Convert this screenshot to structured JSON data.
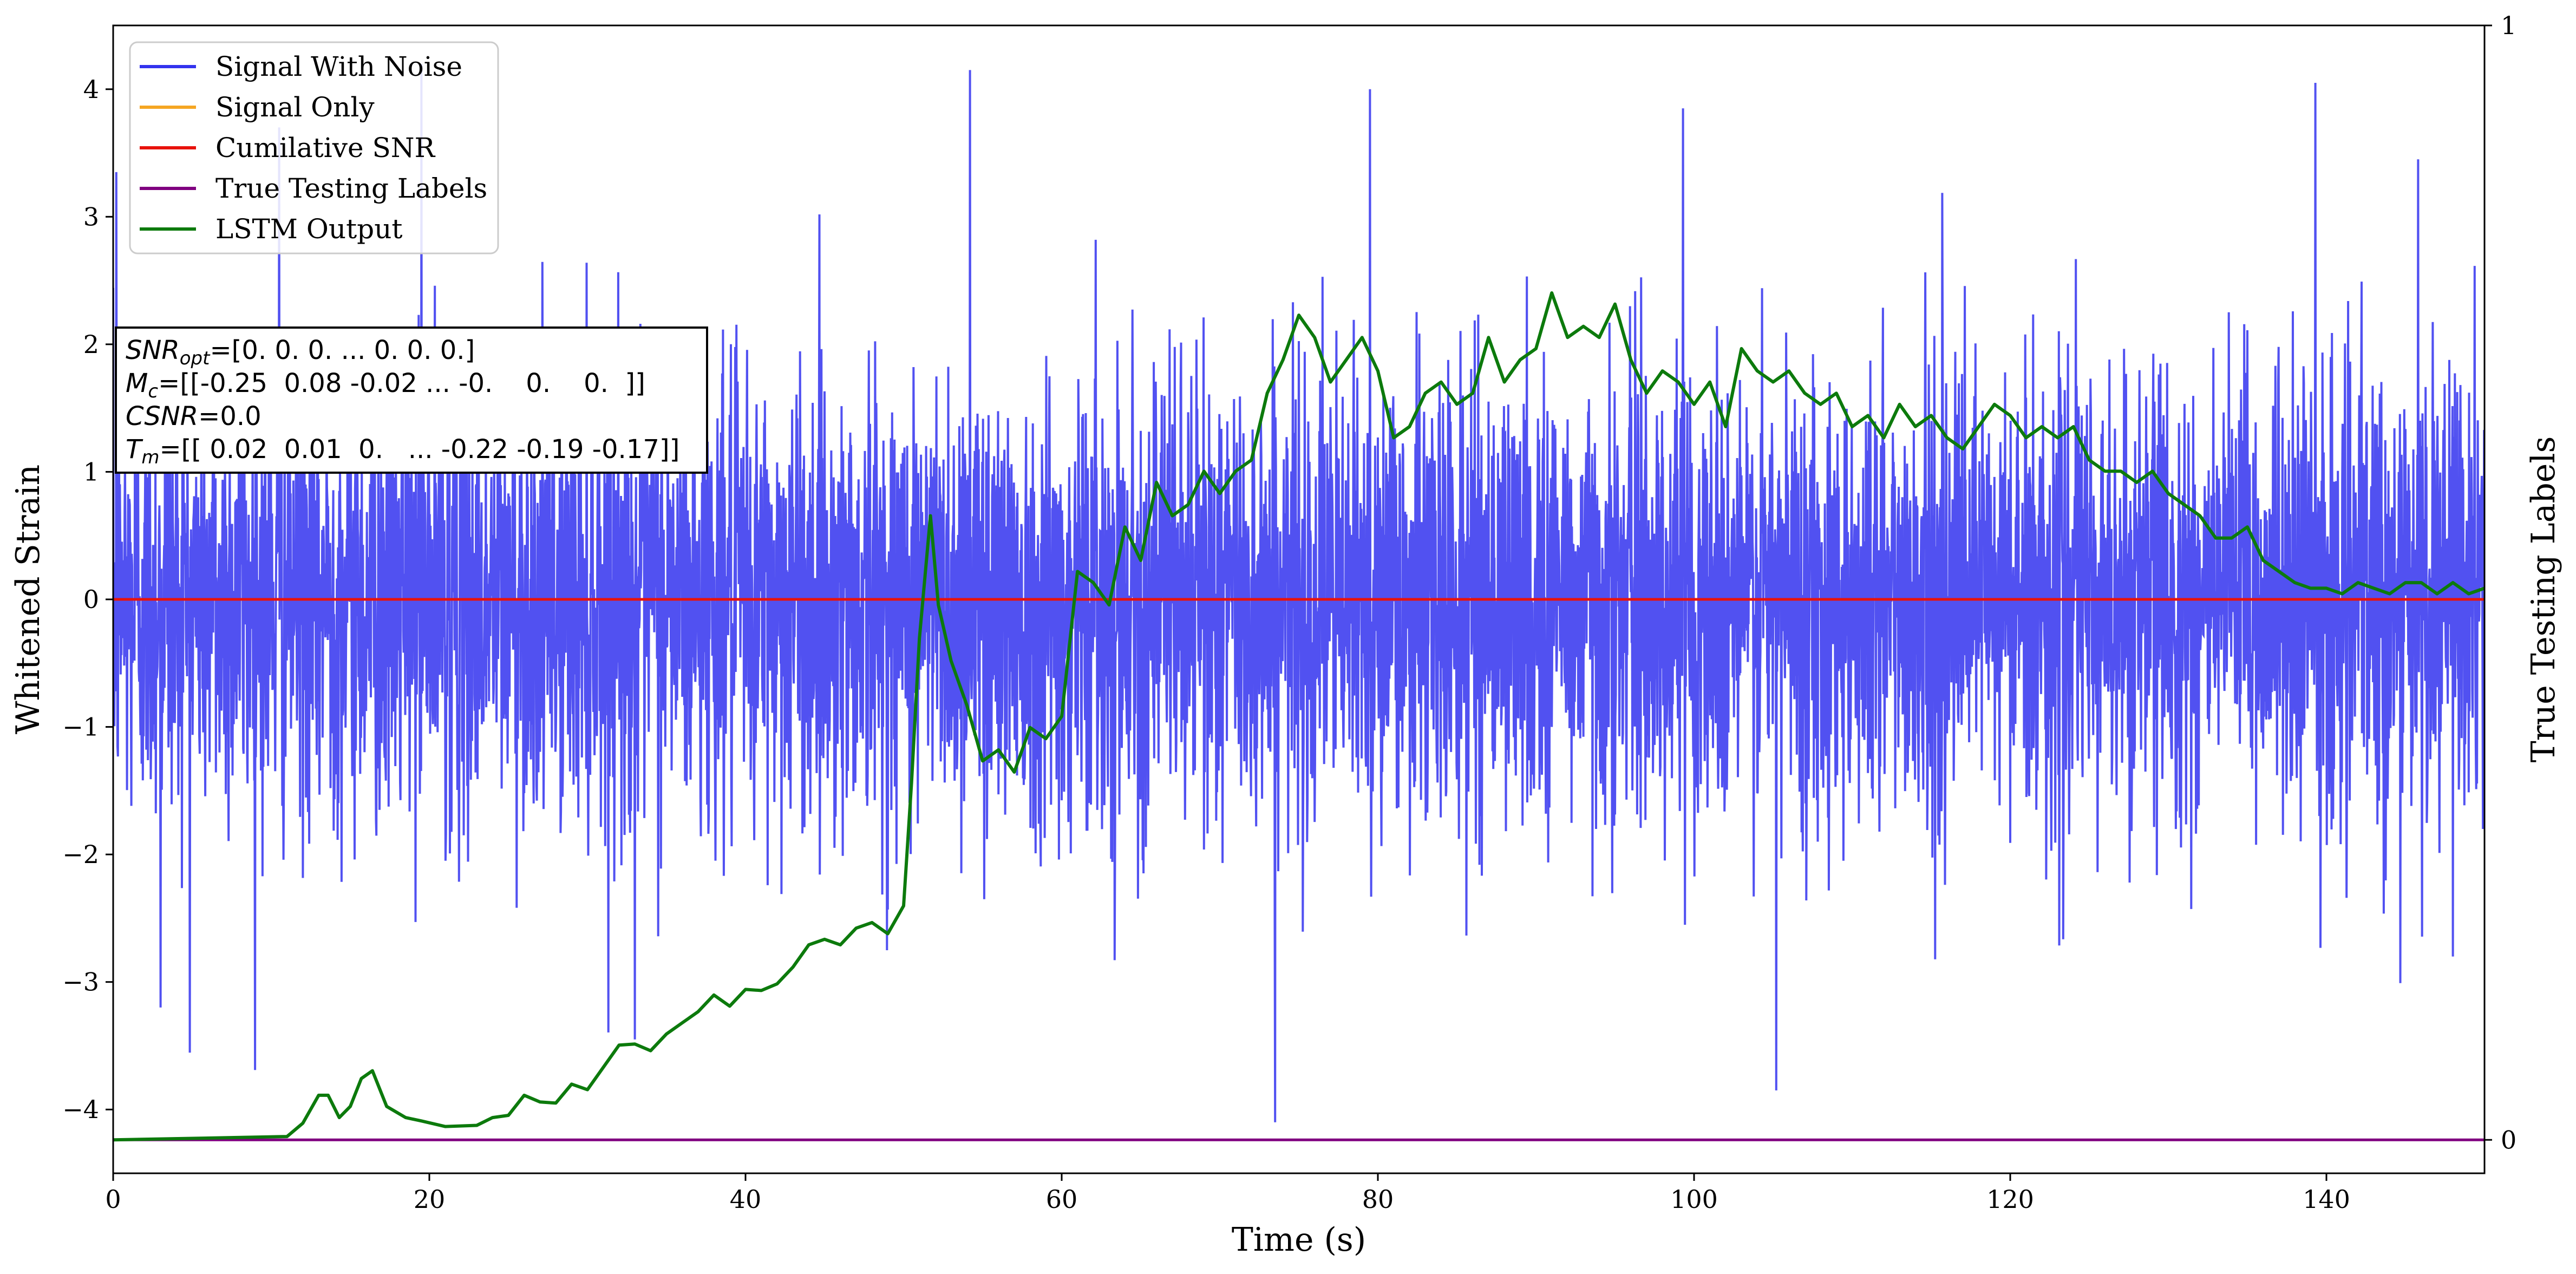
{
  "chart_data": {
    "type": "line",
    "xlabel": "Time (s)",
    "ylabel": "Whitened Strain",
    "y2label": "True Testing Labels",
    "xlim": [
      0,
      150
    ],
    "ylim": [
      -4.5,
      4.5
    ],
    "y2lim": [
      -0.03,
      1.0
    ],
    "xticks": [
      0,
      20,
      40,
      60,
      80,
      100,
      120,
      140
    ],
    "yticks": [
      -4,
      -3,
      -2,
      -1,
      0,
      1,
      2,
      3,
      4
    ],
    "y2ticks": [
      0,
      1
    ],
    "legend_position": "upper-left",
    "grid": false,
    "series": [
      {
        "name": "Signal With Noise",
        "color": "#3333ee",
        "axis": "left",
        "style": "dense noise",
        "envelope": {
          "mean": 0,
          "typical_band": [
            -1.6,
            1.6
          ],
          "peaks": [
            {
              "x": 0.2,
              "y": 3.35
            },
            {
              "x": 3.0,
              "y": -3.2
            },
            {
              "x": 10.5,
              "y": 3.7
            },
            {
              "x": 19.5,
              "y": 4.2
            },
            {
              "x": 33.0,
              "y": -3.45
            },
            {
              "x": 54.2,
              "y": 4.15
            },
            {
              "x": 73.5,
              "y": -4.1
            },
            {
              "x": 79.5,
              "y": 4.0
            },
            {
              "x": 99.3,
              "y": 3.85
            },
            {
              "x": 105.2,
              "y": -3.85
            },
            {
              "x": 139.3,
              "y": 4.05
            },
            {
              "x": 145.8,
              "y": 3.45
            },
            {
              "x": 148.0,
              "y": -2.8
            }
          ]
        }
      },
      {
        "name": "Signal Only",
        "color": "#f5a623",
        "axis": "left",
        "x": [
          0,
          150
        ],
        "y": [
          0,
          0
        ]
      },
      {
        "name": "Cumilative SNR",
        "color": "#e8120c",
        "axis": "left",
        "x": [
          0,
          150
        ],
        "y": [
          0,
          0
        ]
      },
      {
        "name": "True Testing Labels",
        "color": "#800080",
        "axis": "right",
        "x": [
          0,
          150
        ],
        "y": [
          0,
          0
        ]
      },
      {
        "name": "LSTM Output",
        "color": "#0c7a0c",
        "axis": "right",
        "x": [
          0,
          11,
          12,
          13,
          13.6,
          14.3,
          15,
          15.7,
          16.4,
          17.3,
          18.5,
          19.5,
          21,
          23,
          24,
          25,
          26,
          27,
          28,
          29,
          30,
          31,
          32,
          33,
          34,
          35,
          36,
          37,
          38,
          39,
          40,
          41,
          42,
          43,
          44,
          45,
          46,
          47,
          48,
          49,
          50,
          50.5,
          51,
          51.7,
          52.2,
          53,
          54,
          55,
          56,
          57,
          58,
          59,
          60,
          61,
          62,
          63,
          64,
          65,
          66,
          67,
          68,
          69,
          70,
          71,
          72,
          73,
          74,
          75,
          76,
          77,
          78,
          79,
          80,
          81,
          82,
          83,
          84,
          85,
          86,
          87,
          88,
          89,
          90,
          91,
          92,
          93,
          94,
          95,
          96,
          97,
          98,
          99,
          100,
          101,
          102,
          103,
          104,
          105,
          106,
          107,
          108,
          109,
          110,
          111,
          112,
          113,
          114,
          115,
          116,
          117,
          118,
          119,
          120,
          121,
          122,
          123,
          124,
          125,
          126,
          127,
          128,
          129,
          130,
          131,
          132,
          133,
          134,
          135,
          136,
          137,
          138,
          139,
          140,
          141,
          142,
          143,
          144,
          145,
          146,
          147,
          148,
          149,
          150
        ],
        "y": [
          0.0,
          0.003,
          0.015,
          0.04,
          0.04,
          0.02,
          0.03,
          0.055,
          0.062,
          0.03,
          0.02,
          0.017,
          0.012,
          0.013,
          0.02,
          0.022,
          0.04,
          0.034,
          0.033,
          0.05,
          0.045,
          0.065,
          0.085,
          0.086,
          0.08,
          0.095,
          0.105,
          0.115,
          0.13,
          0.12,
          0.135,
          0.134,
          0.14,
          0.155,
          0.175,
          0.18,
          0.175,
          0.19,
          0.195,
          0.185,
          0.21,
          0.32,
          0.45,
          0.56,
          0.48,
          0.43,
          0.39,
          0.34,
          0.35,
          0.33,
          0.37,
          0.36,
          0.38,
          0.51,
          0.5,
          0.48,
          0.55,
          0.52,
          0.59,
          0.56,
          0.57,
          0.6,
          0.58,
          0.6,
          0.61,
          0.67,
          0.7,
          0.74,
          0.72,
          0.68,
          0.7,
          0.72,
          0.69,
          0.63,
          0.64,
          0.67,
          0.68,
          0.66,
          0.67,
          0.72,
          0.68,
          0.7,
          0.71,
          0.76,
          0.72,
          0.73,
          0.72,
          0.75,
          0.7,
          0.67,
          0.69,
          0.68,
          0.66,
          0.68,
          0.64,
          0.71,
          0.69,
          0.68,
          0.69,
          0.67,
          0.66,
          0.67,
          0.64,
          0.65,
          0.63,
          0.66,
          0.64,
          0.65,
          0.63,
          0.62,
          0.64,
          0.66,
          0.65,
          0.63,
          0.64,
          0.63,
          0.64,
          0.61,
          0.6,
          0.6,
          0.59,
          0.6,
          0.58,
          0.57,
          0.56,
          0.54,
          0.54,
          0.55,
          0.52,
          0.51,
          0.5,
          0.495,
          0.495,
          0.49,
          0.5,
          0.495,
          0.49,
          0.5,
          0.5,
          0.49,
          0.5,
          0.49,
          0.495
        ]
      }
    ],
    "annotation": {
      "lines": [
        {
          "symbol": "SNR",
          "sub": "opt",
          "value": "=[0. 0. 0. ... 0. 0. 0.]"
        },
        {
          "symbol": "M",
          "sub": "c",
          "value": "=[[-0.25  0.08 -0.02 ... -0.    0.    0.  ]]"
        },
        {
          "symbol": "CSNR",
          "sub": "",
          "value": "=0.0"
        },
        {
          "symbol": "T",
          "sub": "m",
          "value": "=[[ 0.02  0.01  0.   ... -0.22 -0.19 -0.17]]"
        }
      ]
    }
  }
}
